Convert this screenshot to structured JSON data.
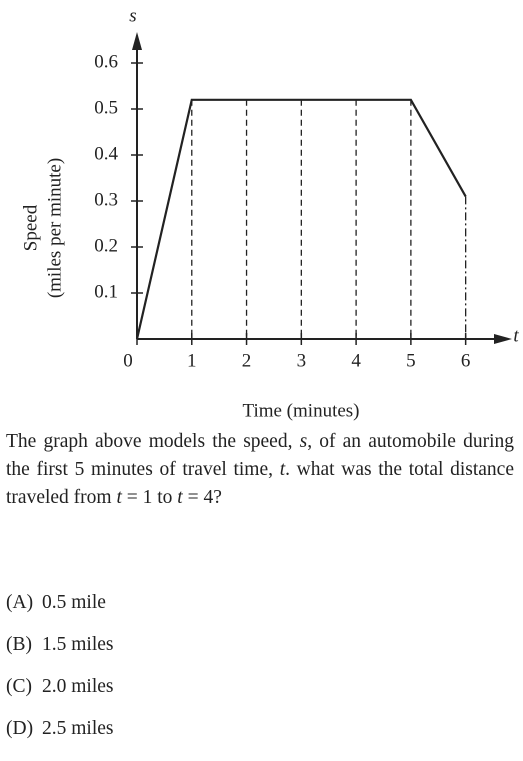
{
  "chart_data": {
    "type": "line",
    "y_axis_letter": "s",
    "x_axis_letter": "t",
    "ylabel": [
      "Speed",
      "(miles per minute)"
    ],
    "xlabel": "Time (minutes)",
    "x": [
      0,
      1,
      5,
      6
    ],
    "series": [
      {
        "color": "#222222",
        "values": [
          0,
          0.52,
          0.52,
          0.31
        ]
      }
    ],
    "xlim": [
      0,
      6.7
    ],
    "ylim": [
      0,
      0.65
    ],
    "xticks": [
      0,
      1,
      2,
      3,
      4,
      5,
      6
    ],
    "yticks": [
      0.1,
      0.2,
      0.3,
      0.4,
      0.5,
      0.6
    ]
  },
  "question": {
    "parts": [
      "The graph above models the speed, ",
      "s",
      ", of an automobile during the first 5 minutes of travel time, ",
      "t",
      ". what was the total distance traveled from ",
      "t",
      " = 1 to ",
      "t",
      " = 4?"
    ]
  },
  "choices": [
    [
      "(A)",
      "0.5 mile"
    ],
    [
      "(B)",
      "1.5 miles"
    ],
    [
      "(C)",
      "2.0 miles"
    ],
    [
      "(D)",
      "2.5 miles"
    ]
  ]
}
